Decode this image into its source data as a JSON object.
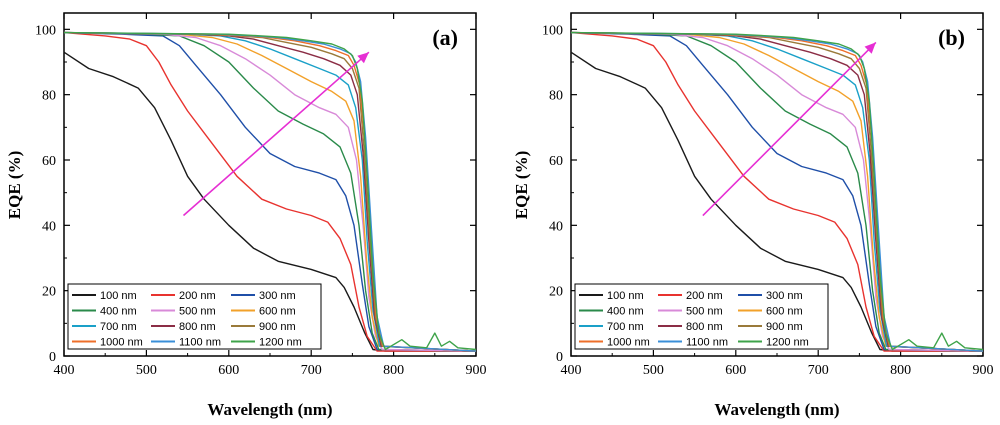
{
  "chart_data": [
    {
      "panel": "(a)",
      "type": "line",
      "xlabel": "Wavelength (nm)",
      "ylabel": "EQE (%)",
      "xlim": [
        400,
        900
      ],
      "ylim": [
        0,
        105
      ],
      "xticks": [
        400,
        500,
        600,
        700,
        800,
        900
      ],
      "yticks": [
        0,
        20,
        40,
        60,
        80,
        100
      ],
      "legend_position": "bottom-left",
      "annotation": "magenta arrow indicating increasing thickness (from ~545 nm, 43% to ~770 nm, 93%)",
      "arrow": {
        "from": [
          545,
          43
        ],
        "to": [
          770,
          93
        ]
      }
    },
    {
      "panel": "(b)",
      "type": "line",
      "xlabel": "Wavelength (nm)",
      "ylabel": "EQE (%)",
      "xlim": [
        400,
        900
      ],
      "ylim": [
        0,
        105
      ],
      "xticks": [
        400,
        500,
        600,
        700,
        800,
        900
      ],
      "yticks": [
        0,
        20,
        40,
        60,
        80,
        100
      ],
      "legend_position": "bottom-left",
      "annotation": "magenta arrow indicating increasing thickness (from ~560 nm, 43% to ~770 nm, 96%)",
      "arrow": {
        "from": [
          560,
          43
        ],
        "to": [
          770,
          96
        ]
      }
    }
  ],
  "series": [
    {
      "name": "100 nm",
      "color": "#1a1a1a",
      "points": [
        [
          400,
          93
        ],
        [
          430,
          88
        ],
        [
          460,
          85.5
        ],
        [
          490,
          82
        ],
        [
          510,
          76
        ],
        [
          530,
          66
        ],
        [
          550,
          55
        ],
        [
          570,
          48
        ],
        [
          600,
          40
        ],
        [
          630,
          33
        ],
        [
          660,
          29
        ],
        [
          700,
          26.5
        ],
        [
          730,
          24
        ],
        [
          740,
          21
        ],
        [
          752,
          15
        ],
        [
          765,
          7
        ],
        [
          775,
          2
        ],
        [
          790,
          1.5
        ],
        [
          900,
          1.5
        ]
      ]
    },
    {
      "name": "200 nm",
      "color": "#e8332f",
      "points": [
        [
          400,
          99
        ],
        [
          450,
          98
        ],
        [
          480,
          97
        ],
        [
          500,
          95
        ],
        [
          515,
          90
        ],
        [
          530,
          83
        ],
        [
          550,
          75
        ],
        [
          580,
          65
        ],
        [
          610,
          55
        ],
        [
          640,
          48
        ],
        [
          670,
          45
        ],
        [
          700,
          43
        ],
        [
          720,
          41
        ],
        [
          735,
          36
        ],
        [
          748,
          28
        ],
        [
          758,
          15
        ],
        [
          768,
          6
        ],
        [
          780,
          1.5
        ],
        [
          900,
          1.5
        ]
      ]
    },
    {
      "name": "300 nm",
      "color": "#1f4fa8",
      "points": [
        [
          400,
          99
        ],
        [
          470,
          98.5
        ],
        [
          520,
          98
        ],
        [
          540,
          95
        ],
        [
          560,
          89
        ],
        [
          590,
          80
        ],
        [
          620,
          70
        ],
        [
          650,
          62
        ],
        [
          680,
          58
        ],
        [
          710,
          56
        ],
        [
          730,
          54
        ],
        [
          742,
          49
        ],
        [
          752,
          40
        ],
        [
          762,
          22
        ],
        [
          770,
          9
        ],
        [
          780,
          2
        ],
        [
          900,
          1.5
        ]
      ]
    },
    {
      "name": "400 nm",
      "color": "#2a8a4a",
      "points": [
        [
          400,
          99
        ],
        [
          500,
          98.5
        ],
        [
          540,
          98
        ],
        [
          570,
          95
        ],
        [
          600,
          90
        ],
        [
          630,
          82
        ],
        [
          660,
          75
        ],
        [
          690,
          71
        ],
        [
          715,
          68
        ],
        [
          735,
          64
        ],
        [
          748,
          56
        ],
        [
          758,
          40
        ],
        [
          766,
          20
        ],
        [
          774,
          7
        ],
        [
          782,
          2
        ],
        [
          900,
          1.5
        ]
      ]
    },
    {
      "name": "500 nm",
      "color": "#d88ad8",
      "points": [
        [
          400,
          99
        ],
        [
          520,
          98.5
        ],
        [
          560,
          97.5
        ],
        [
          590,
          95
        ],
        [
          620,
          91
        ],
        [
          650,
          86
        ],
        [
          680,
          80
        ],
        [
          710,
          76
        ],
        [
          730,
          74
        ],
        [
          745,
          70
        ],
        [
          755,
          60
        ],
        [
          763,
          40
        ],
        [
          770,
          18
        ],
        [
          778,
          6
        ],
        [
          786,
          2
        ],
        [
          900,
          1.5
        ]
      ]
    },
    {
      "name": "600 nm",
      "color": "#f2a12a",
      "points": [
        [
          400,
          99
        ],
        [
          540,
          98.5
        ],
        [
          580,
          97.5
        ],
        [
          610,
          95.5
        ],
        [
          640,
          92
        ],
        [
          670,
          88
        ],
        [
          700,
          84
        ],
        [
          725,
          81
        ],
        [
          742,
          78
        ],
        [
          752,
          72
        ],
        [
          760,
          55
        ],
        [
          767,
          30
        ],
        [
          774,
          12
        ],
        [
          782,
          3
        ],
        [
          900,
          1.5
        ]
      ]
    },
    {
      "name": "700 nm",
      "color": "#1aa0c8",
      "points": [
        [
          400,
          99
        ],
        [
          550,
          98.5
        ],
        [
          590,
          98
        ],
        [
          620,
          96.5
        ],
        [
          650,
          94
        ],
        [
          680,
          91
        ],
        [
          710,
          88
        ],
        [
          730,
          86
        ],
        [
          745,
          83
        ],
        [
          754,
          76
        ],
        [
          762,
          60
        ],
        [
          768,
          35
        ],
        [
          775,
          14
        ],
        [
          783,
          3
        ],
        [
          900,
          1.5
        ]
      ]
    },
    {
      "name": "800 nm",
      "color": "#8b2d45",
      "points": [
        [
          400,
          99
        ],
        [
          560,
          98.5
        ],
        [
          600,
          98
        ],
        [
          630,
          97
        ],
        [
          660,
          95
        ],
        [
          690,
          93
        ],
        [
          715,
          91
        ],
        [
          735,
          89
        ],
        [
          748,
          86
        ],
        [
          756,
          80
        ],
        [
          763,
          62
        ],
        [
          770,
          35
        ],
        [
          777,
          12
        ],
        [
          785,
          3
        ],
        [
          900,
          1.5
        ]
      ]
    },
    {
      "name": "900 nm",
      "color": "#9a7a3a",
      "points": [
        [
          400,
          99
        ],
        [
          570,
          98.5
        ],
        [
          610,
          98
        ],
        [
          640,
          97.5
        ],
        [
          670,
          96
        ],
        [
          700,
          94.5
        ],
        [
          725,
          92.5
        ],
        [
          740,
          91
        ],
        [
          750,
          88
        ],
        [
          758,
          82
        ],
        [
          764,
          64
        ],
        [
          771,
          36
        ],
        [
          778,
          12
        ],
        [
          786,
          3
        ],
        [
          900,
          1.5
        ]
      ]
    },
    {
      "name": "1000 nm",
      "color": "#ee6f2a",
      "points": [
        [
          400,
          99
        ],
        [
          580,
          98.5
        ],
        [
          620,
          98
        ],
        [
          650,
          97.5
        ],
        [
          680,
          96.5
        ],
        [
          710,
          95
        ],
        [
          730,
          93.5
        ],
        [
          745,
          92
        ],
        [
          752,
          89
        ],
        [
          759,
          83
        ],
        [
          765,
          66
        ],
        [
          772,
          38
        ],
        [
          779,
          12
        ],
        [
          787,
          3
        ],
        [
          900,
          1.5
        ]
      ]
    },
    {
      "name": "1100 nm",
      "color": "#3a8fd8",
      "points": [
        [
          400,
          99
        ],
        [
          590,
          98.5
        ],
        [
          630,
          98
        ],
        [
          660,
          97.5
        ],
        [
          690,
          96.5
        ],
        [
          715,
          95.5
        ],
        [
          735,
          94
        ],
        [
          748,
          92.5
        ],
        [
          754,
          90
        ],
        [
          760,
          84
        ],
        [
          766,
          67
        ],
        [
          773,
          39
        ],
        [
          780,
          12
        ],
        [
          788,
          3
        ],
        [
          900,
          1.5
        ]
      ]
    },
    {
      "name": "1200 nm",
      "color": "#3ea34a",
      "points": [
        [
          400,
          99
        ],
        [
          600,
          98.5
        ],
        [
          640,
          98
        ],
        [
          670,
          97.5
        ],
        [
          700,
          96.5
        ],
        [
          725,
          95.5
        ],
        [
          740,
          94
        ],
        [
          750,
          92
        ],
        [
          756,
          88
        ],
        [
          762,
          78
        ],
        [
          768,
          55
        ],
        [
          775,
          25
        ],
        [
          782,
          7
        ],
        [
          790,
          2
        ],
        [
          810,
          5
        ],
        [
          820,
          3
        ],
        [
          840,
          2.5
        ],
        [
          850,
          7
        ],
        [
          858,
          3
        ],
        [
          868,
          4.5
        ],
        [
          878,
          2.5
        ],
        [
          900,
          2
        ]
      ]
    }
  ],
  "panels": {
    "a": {
      "label": "(a)",
      "xlabel": "Wavelength (nm)",
      "ylabel": "EQE (%)"
    },
    "b": {
      "label": "(b)",
      "xlabel": "Wavelength (nm)",
      "ylabel": "EQE (%)"
    }
  },
  "arrow_color": "#e62fd3"
}
